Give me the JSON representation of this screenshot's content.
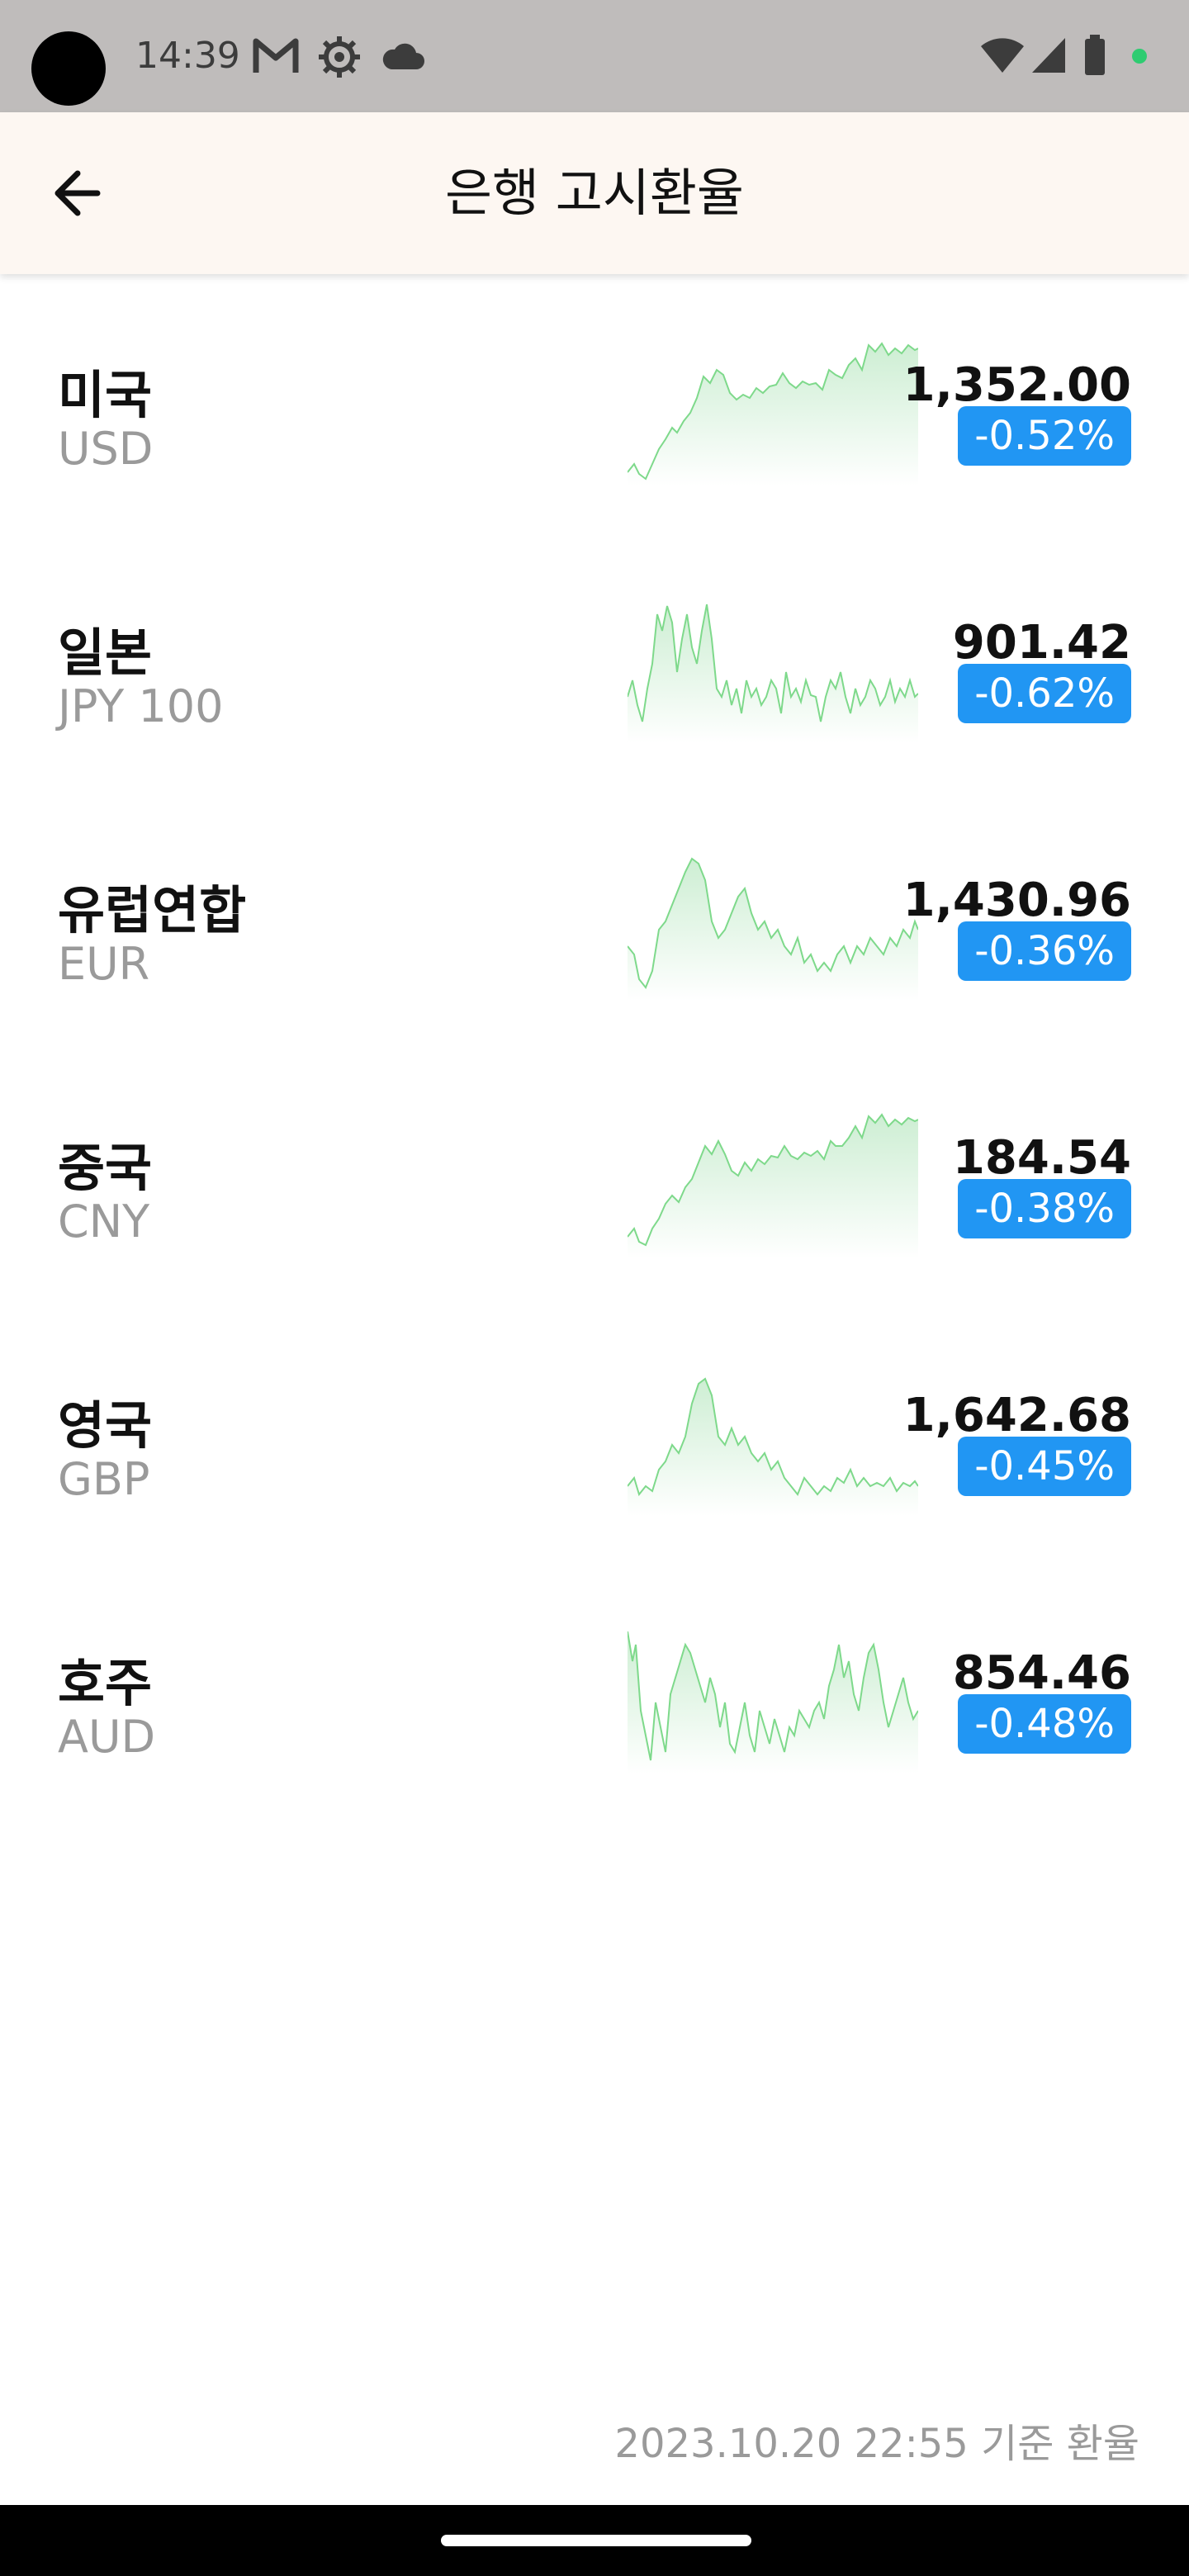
{
  "status_bar": {
    "time": "14:39",
    "icons": [
      "gmail-icon",
      "settings-gear-icon",
      "cloud-icon",
      "wifi-icon",
      "signal-icon",
      "battery-icon",
      "notification-dot-icon"
    ]
  },
  "header": {
    "title": "은행 고시환율",
    "back_icon": "arrow-left-icon"
  },
  "rates": [
    {
      "country": "미국",
      "code": "USD",
      "rate": "1,352.00",
      "change": "-0.52%"
    },
    {
      "country": "일본",
      "code": "JPY 100",
      "rate": "901.42",
      "change": "-0.62%"
    },
    {
      "country": "유럽연합",
      "code": "EUR",
      "rate": "1,430.96",
      "change": "-0.36%"
    },
    {
      "country": "중국",
      "code": "CNY",
      "rate": "184.54",
      "change": "-0.38%"
    },
    {
      "country": "영국",
      "code": "GBP",
      "rate": "1,642.68",
      "change": "-0.45%"
    },
    {
      "country": "호주",
      "code": "AUD",
      "rate": "854.46",
      "change": "-0.48%"
    }
  ],
  "colors": {
    "badge": "#2196f3",
    "sparkline_stroke": "#7ed98b",
    "sparkline_fill": "#d8f3dc",
    "header_bg": "#fdf7f2",
    "status_bar_bg": "#bfbcbb"
  },
  "footer": {
    "timestamp": "2023.10.20 22:55 기준 환율"
  }
}
